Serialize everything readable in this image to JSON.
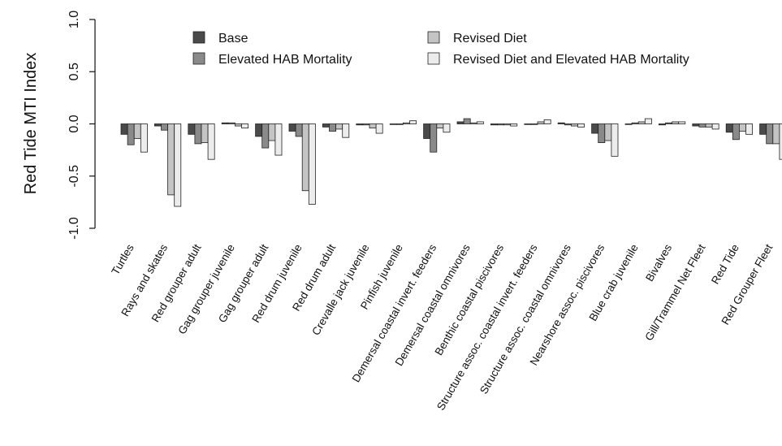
{
  "chart_data": {
    "type": "bar",
    "title": "",
    "xlabel": "",
    "ylabel": "Red Tide MTI Index",
    "ylim": [
      -1.0,
      1.0
    ],
    "yticks": [
      {
        "value": -1.0,
        "label": "-1.0"
      },
      {
        "value": -0.5,
        "label": "-0.5"
      },
      {
        "value": 0.0,
        "label": "0.0"
      },
      {
        "value": 0.5,
        "label": "0.5"
      },
      {
        "value": 1.0,
        "label": "1.0"
      }
    ],
    "grid": false,
    "legend_position": "top",
    "categories": [
      "Turtles",
      "Rays and skates",
      "Red grouper adult",
      "Gag grouper juvenile",
      "Gag grouper adult",
      "Red drum juvenile",
      "Red drum adult",
      "Crevalle jack juvenile",
      "Pinfish juvenile",
      "Demersal coastal invert. feeders",
      "Demersal coastal omnivores",
      "Benthic coastal piscivores",
      "Structure assoc. coastal invert. feeders",
      "Structure assoc. coastal omnivores",
      "Nearshore assoc. piscivores",
      "Blue crab juvenile",
      "Bivalves",
      "Gill/Trammel Net Fleet",
      "Red Tide",
      "Red Grouper Fleet"
    ],
    "series": [
      {
        "name": "Base",
        "color": "#4a4a4a",
        "values": [
          -0.1,
          -0.02,
          -0.1,
          0.01,
          -0.12,
          -0.07,
          -0.03,
          -0.01,
          0.0,
          -0.14,
          0.02,
          -0.01,
          0.0,
          0.01,
          -0.09,
          0.0,
          -0.01,
          -0.02,
          -0.08,
          -0.1
        ]
      },
      {
        "name": "Elevated HAB Mortality",
        "color": "#8a8a8a",
        "values": [
          -0.2,
          -0.06,
          -0.19,
          0.01,
          -0.23,
          -0.12,
          -0.07,
          -0.01,
          0.0,
          -0.27,
          0.05,
          -0.01,
          0.0,
          -0.01,
          -0.18,
          0.01,
          0.01,
          -0.03,
          -0.15,
          -0.19
        ]
      },
      {
        "name": "Revised Diet",
        "color": "#c4c4c4",
        "values": [
          -0.14,
          -0.68,
          -0.18,
          -0.02,
          -0.16,
          -0.64,
          -0.05,
          -0.04,
          0.01,
          -0.04,
          0.01,
          -0.01,
          0.02,
          -0.02,
          -0.16,
          0.02,
          0.02,
          -0.03,
          -0.07,
          -0.19
        ]
      },
      {
        "name": "Revised Diet and Elevated HAB Mortality",
        "color": "#ececec",
        "values": [
          -0.27,
          -0.79,
          -0.34,
          -0.04,
          -0.3,
          -0.77,
          -0.13,
          -0.09,
          0.03,
          -0.08,
          0.02,
          -0.02,
          0.04,
          -0.03,
          -0.31,
          0.05,
          0.02,
          -0.05,
          -0.1,
          -0.34
        ]
      }
    ]
  }
}
